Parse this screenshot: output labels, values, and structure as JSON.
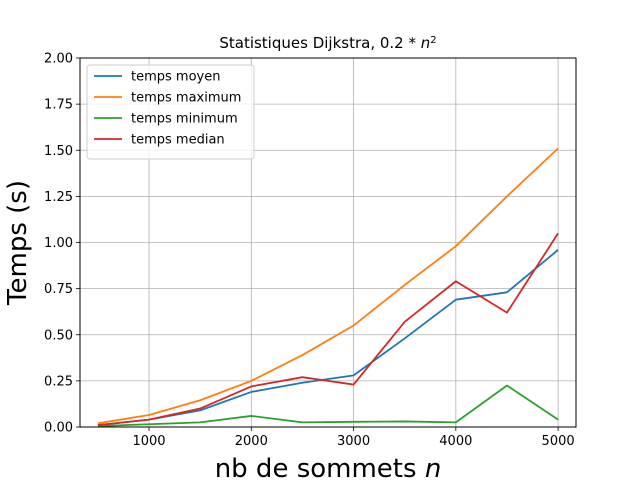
{
  "chart_data": {
    "type": "line",
    "title": "Statistiques Dijkstra, 0.2 * n²",
    "title_parts": {
      "prefix": "Statistiques Dijkstra, 0.2 * ",
      "var": "n",
      "sup": "2"
    },
    "xlabel": "nb de sommets",
    "xlabel_var": "n",
    "ylabel": "Temps (s)",
    "xlim": [
      325,
      5175
    ],
    "ylim": [
      0,
      2.0
    ],
    "x_ticks": [
      1000,
      2000,
      3000,
      4000,
      5000
    ],
    "x_tick_labels": [
      "1000",
      "2000",
      "3000",
      "4000",
      "5000"
    ],
    "y_ticks": [
      0.0,
      0.25,
      0.5,
      0.75,
      1.0,
      1.25,
      1.5,
      1.75,
      2.0
    ],
    "y_tick_labels": [
      "0.00",
      "0.25",
      "0.50",
      "0.75",
      "1.00",
      "1.25",
      "1.50",
      "1.75",
      "2.00"
    ],
    "grid": true,
    "legend_position": "upper-left",
    "x": [
      500,
      1000,
      1500,
      2000,
      2500,
      3000,
      3500,
      4000,
      4500,
      5000
    ],
    "series": [
      {
        "name": "temps moyen",
        "color": "#1f77b4",
        "values": [
          0.01,
          0.04,
          0.09,
          0.19,
          0.24,
          0.28,
          0.48,
          0.69,
          0.73,
          0.96
        ]
      },
      {
        "name": "temps maximum",
        "color": "#ff7f0e",
        "values": [
          0.02,
          0.065,
          0.145,
          0.25,
          0.39,
          0.55,
          0.77,
          0.98,
          1.25,
          1.51
        ]
      },
      {
        "name": "temps minimum",
        "color": "#2ca02c",
        "values": [
          0.005,
          0.015,
          0.025,
          0.06,
          0.025,
          0.028,
          0.03,
          0.025,
          0.225,
          0.04
        ]
      },
      {
        "name": "temps median",
        "color": "#d62728",
        "values": [
          0.01,
          0.04,
          0.1,
          0.22,
          0.27,
          0.23,
          0.57,
          0.79,
          0.62,
          1.05
        ]
      }
    ]
  }
}
